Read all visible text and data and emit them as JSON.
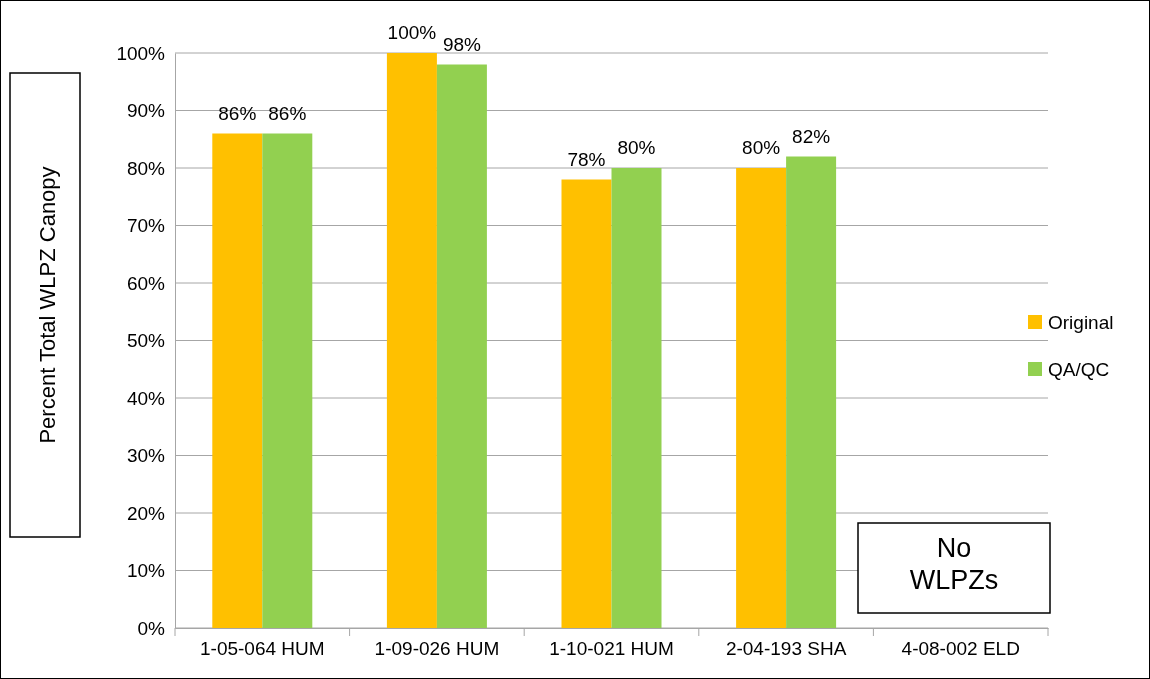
{
  "chart_data": {
    "type": "bar",
    "ylabel": "Percent Total WLPZ Canopy",
    "categories": [
      "1-05-064 HUM",
      "1-09-026 HUM",
      "1-10-021 HUM",
      "2-04-193 SHA",
      "4-08-002 ELD"
    ],
    "series": [
      {
        "name": "Original",
        "color": "#ffc000",
        "values": [
          86,
          100,
          78,
          80,
          null
        ],
        "value_labels": [
          "86%",
          "100%",
          "78%",
          "80%",
          null
        ]
      },
      {
        "name": "QA/QC",
        "color": "#92d050",
        "values": [
          86,
          98,
          80,
          82,
          null
        ],
        "value_labels": [
          "86%",
          "98%",
          "80%",
          "82%",
          null
        ]
      }
    ],
    "ylim": [
      0,
      100
    ],
    "yticks": [
      {
        "value": 0,
        "label": "0%"
      },
      {
        "value": 10,
        "label": "10%"
      },
      {
        "value": 20,
        "label": "20%"
      },
      {
        "value": 30,
        "label": "30%"
      },
      {
        "value": 40,
        "label": "40%"
      },
      {
        "value": 50,
        "label": "50%"
      },
      {
        "value": 60,
        "label": "60%"
      },
      {
        "value": 70,
        "label": "70%"
      },
      {
        "value": 80,
        "label": "80%"
      },
      {
        "value": 90,
        "label": "90%"
      },
      {
        "value": 100,
        "label": "100%"
      }
    ],
    "grid": "y",
    "legend": "right",
    "annotations": [
      "No WLPZs"
    ]
  }
}
